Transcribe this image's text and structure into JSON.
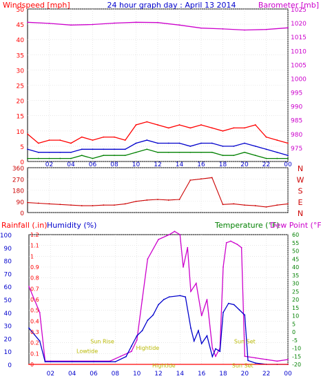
{
  "chart_data": [
    {
      "type": "line",
      "title": "24 hour graph day : April 13 2014",
      "left_axis_label": "Windspeed [mph]",
      "right_axis_label": "Barometer [mb]",
      "x_ticks": [
        "02",
        "04",
        "06",
        "08",
        "10",
        "12",
        "14",
        "16",
        "18",
        "20",
        "22",
        "00"
      ],
      "ylim_left": [
        0,
        50
      ],
      "y_ticks_left": [
        0,
        5,
        10,
        15,
        20,
        25,
        30,
        35,
        40,
        45,
        50
      ],
      "ylim_right": [
        970,
        1025
      ],
      "y_ticks_right": [
        975,
        980,
        985,
        990,
        995,
        1000,
        1005,
        1010,
        1015,
        1020,
        1025
      ],
      "grid": true,
      "series": [
        {
          "role": "gust",
          "color": "#ff0000",
          "x": [
            0,
            1,
            2,
            3,
            4,
            5,
            6,
            7,
            8,
            9,
            10,
            11,
            12,
            13,
            14,
            15,
            16,
            17,
            18,
            19,
            20,
            21,
            22,
            23,
            24
          ],
          "values": [
            9,
            6,
            7,
            7,
            6,
            8,
            7,
            8,
            8,
            7,
            12,
            13,
            12,
            11,
            12,
            11,
            12,
            11,
            10,
            11,
            11,
            12,
            8,
            7,
            6
          ]
        },
        {
          "role": "average",
          "color": "#0000cc",
          "x": [
            0,
            1,
            2,
            3,
            4,
            5,
            6,
            7,
            8,
            9,
            10,
            11,
            12,
            13,
            14,
            15,
            16,
            17,
            18,
            19,
            20,
            21,
            22,
            23,
            24
          ],
          "values": [
            4,
            3,
            3,
            3,
            3,
            4,
            4,
            4,
            4,
            4,
            6,
            7,
            6,
            6,
            6,
            5,
            6,
            6,
            5,
            5,
            6,
            5,
            4,
            3,
            2
          ]
        },
        {
          "role": "wind",
          "color": "#008000",
          "x": [
            0,
            1,
            2,
            3,
            4,
            5,
            6,
            7,
            8,
            9,
            10,
            11,
            12,
            13,
            14,
            15,
            16,
            17,
            18,
            19,
            20,
            21,
            22,
            23,
            24
          ],
          "values": [
            1,
            1,
            1,
            1,
            1,
            2,
            1,
            2,
            2,
            2,
            3,
            4,
            3,
            3,
            3,
            3,
            3,
            3,
            2,
            2,
            3,
            2,
            1,
            1,
            1
          ]
        },
        {
          "role": "barometer",
          "axis": "right",
          "color": "#cc00cc",
          "x": [
            0,
            2,
            4,
            6,
            8,
            10,
            12,
            14,
            16,
            18,
            20,
            22,
            24
          ],
          "values": [
            1020.2,
            1019.8,
            1019.2,
            1019.4,
            1019.9,
            1020.2,
            1020.1,
            1019.2,
            1018.1,
            1017.8,
            1017.4,
            1017.6,
            1018.2
          ]
        }
      ]
    },
    {
      "type": "line",
      "x_ticks": [
        "02",
        "04",
        "06",
        "08",
        "10",
        "12",
        "14",
        "16",
        "18",
        "20",
        "22",
        "00"
      ],
      "ylim": [
        0,
        360
      ],
      "y_ticks": [
        0,
        90,
        180,
        270,
        360
      ],
      "right_labels": [
        "N",
        "W",
        "S",
        "E",
        "N"
      ],
      "grid": true,
      "series": [
        {
          "role": "wind-direction",
          "color": "#cc0000",
          "x": [
            0,
            1,
            2,
            3,
            4,
            5,
            6,
            7,
            8,
            9,
            10,
            11,
            12,
            13,
            14,
            15,
            16,
            17,
            18,
            19,
            20,
            21,
            22,
            23,
            24
          ],
          "values": [
            80,
            75,
            70,
            65,
            60,
            55,
            55,
            60,
            60,
            70,
            90,
            100,
            105,
            100,
            105,
            260,
            270,
            280,
            65,
            70,
            60,
            55,
            45,
            60,
            70
          ]
        }
      ]
    },
    {
      "type": "line",
      "labels": {
        "rainfall": "Rainfall (.in)",
        "humidity": "Humidity (%)",
        "temperature": "Temperature (°F)",
        "dewpoint": "Dew Point (°F)"
      },
      "x_ticks": [
        "02",
        "04",
        "06",
        "08",
        "10",
        "12",
        "14",
        "16",
        "18",
        "20",
        "22",
        "00"
      ],
      "ylim_rain": [
        0,
        1.2
      ],
      "y_ticks_rain": [
        "0",
        "0.1",
        "0.2",
        "0.3",
        "0.4",
        "0.5",
        "0.6",
        "0.7",
        "0.8",
        "0.9",
        "1",
        "1.1",
        "1.2"
      ],
      "ylim_humidity": [
        0,
        100
      ],
      "y_ticks_humidity": [
        0,
        10,
        20,
        30,
        40,
        50,
        60,
        70,
        80,
        90,
        100
      ],
      "ylim_temp": [
        -20,
        60
      ],
      "y_ticks_temp": [
        -20,
        -15,
        -10,
        -5,
        0,
        5,
        10,
        15,
        20,
        25,
        30,
        35,
        40,
        45,
        50,
        55,
        60
      ],
      "grid": true,
      "annotations": [
        {
          "text": "Lowtide",
          "x": 5.4,
          "y": -13
        },
        {
          "text": "Sun Rise",
          "x": 6.8,
          "y": -7
        },
        {
          "text": "Hightide",
          "x": 11.0,
          "y": -11
        },
        {
          "text": "Sun Set",
          "x": 20.0,
          "y": -7
        },
        {
          "text": "Hightide",
          "x": 12.5,
          "y": -22
        },
        {
          "text": "Sun Set",
          "x": 19.8,
          "y": -22
        }
      ],
      "series": [
        {
          "role": "temperature",
          "axis": "temp",
          "color": "#cc00cc",
          "x": [
            0,
            1,
            1.5,
            2,
            4,
            6,
            7.5,
            8.5,
            9.5,
            10,
            10.5,
            11,
            12,
            13,
            13.5,
            14,
            14.3,
            14.7,
            15,
            15.5,
            16,
            16.5,
            17,
            17.3,
            17.7,
            18,
            18.3,
            18.7,
            19,
            19.3,
            19.7,
            20,
            21,
            22,
            23,
            24
          ],
          "values": [
            28,
            12,
            -18,
            -18,
            -18,
            -18,
            -18,
            -15,
            -12,
            -5,
            20,
            45,
            57,
            60,
            62,
            60,
            40,
            52,
            25,
            30,
            10,
            20,
            -10,
            -15,
            -10,
            40,
            55,
            56,
            55,
            54,
            52,
            -15,
            -16,
            -17,
            -18,
            -17
          ]
        },
        {
          "role": "humidity",
          "axis": "humidity",
          "color": "#0000cc",
          "x": [
            0,
            1,
            1.5,
            2,
            4,
            6,
            8,
            9,
            9.5,
            10,
            10.5,
            11,
            11.5,
            12,
            12.5,
            13,
            14,
            14.5,
            15,
            15.3,
            15.7,
            16,
            16.5,
            17,
            17.3,
            17.7,
            18,
            18.5,
            19,
            19.5,
            20,
            20.3,
            21,
            22,
            23,
            24
          ],
          "values": [
            28,
            18,
            2,
            2,
            2,
            2,
            2,
            6,
            14,
            22,
            26,
            34,
            38,
            46,
            50,
            52,
            53,
            52,
            28,
            18,
            26,
            16,
            22,
            6,
            12,
            10,
            40,
            47,
            46,
            42,
            38,
            3,
            1,
            0,
            0,
            0
          ]
        },
        {
          "role": "rainfall",
          "axis": "rain",
          "color": "#ff0000",
          "x": [
            0,
            24
          ],
          "values": [
            0,
            0
          ]
        }
      ]
    }
  ]
}
